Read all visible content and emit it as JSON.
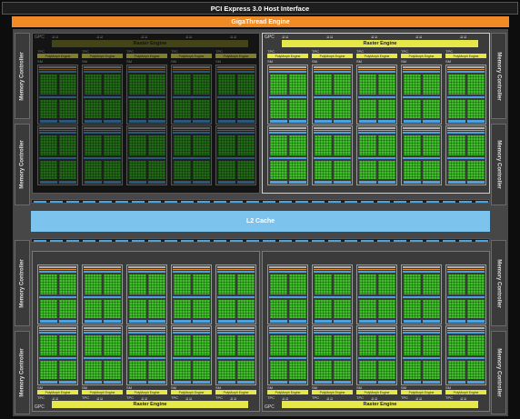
{
  "header": {
    "pcie_label": "PCI Express 3.0 Host Interface",
    "gigathread_label": "GigaThread Engine"
  },
  "memory_controller_label": "Memory Controller",
  "l2_label": "L2 Cache",
  "gpc": {
    "label": "GPC",
    "raster_label": "Raster Engine",
    "tpc_label": "TPC",
    "sm_label": "SM",
    "polymorph_label": "PolyMorph Engine",
    "warp_sched_label": "⇊ ⇊"
  },
  "colors": {
    "gigathread": "#f08a24",
    "raster": "#e6e84a",
    "l2": "#7cc3ee",
    "cuda_cores": "#3fbf2a",
    "memory_lanes": "#4aa3df"
  }
}
